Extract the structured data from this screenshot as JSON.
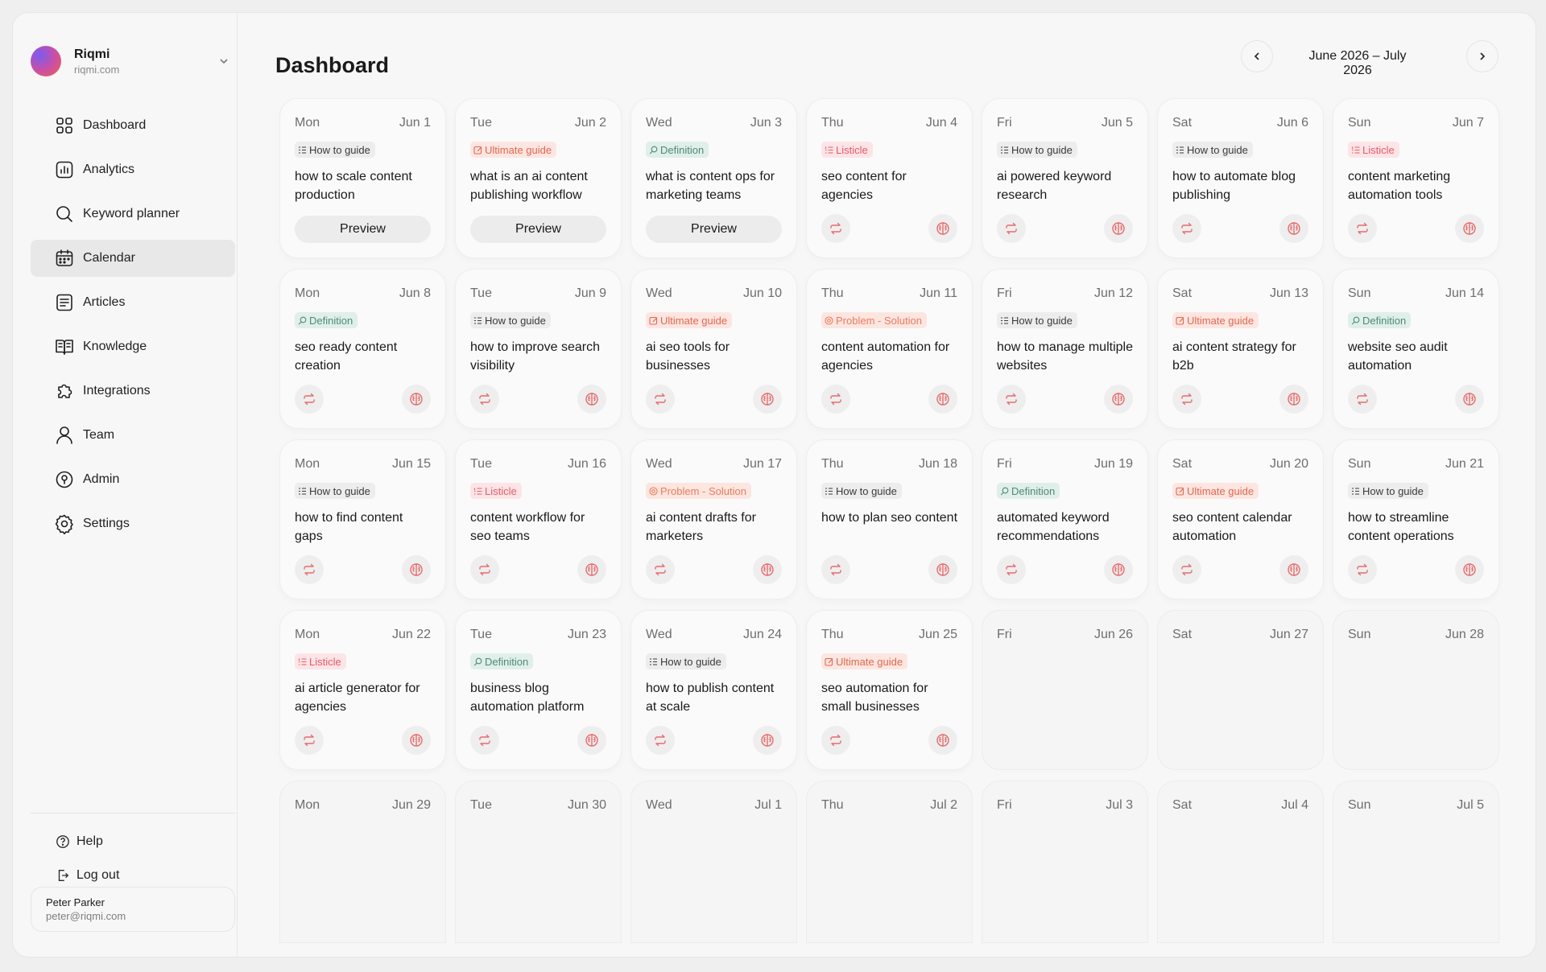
{
  "workspace": {
    "name": "Riqmi",
    "domain": "riqmi.com"
  },
  "nav": [
    {
      "label": "Dashboard",
      "icon": "grid-icon"
    },
    {
      "label": "Analytics",
      "icon": "bar-chart-icon"
    },
    {
      "label": "Keyword planner",
      "icon": "search-icon"
    },
    {
      "label": "Calendar",
      "icon": "calendar-icon",
      "active": true
    },
    {
      "label": "Articles",
      "icon": "article-icon"
    },
    {
      "label": "Knowledge",
      "icon": "book-icon"
    },
    {
      "label": "Integrations",
      "icon": "puzzle-icon"
    },
    {
      "label": "Team",
      "icon": "user-icon"
    },
    {
      "label": "Admin",
      "icon": "pin-icon"
    },
    {
      "label": "Settings",
      "icon": "gear-icon"
    }
  ],
  "footer": {
    "help": "Help",
    "logout": "Log out"
  },
  "user": {
    "name": "Peter Parker",
    "email": "peter@riqmi.com"
  },
  "header": {
    "title": "Dashboard",
    "range": "June 2026 – July 2026"
  },
  "colors": {
    "accent": "#e05a5a",
    "howto": "#3a3a3a",
    "ultimate": "#e0684f",
    "definition": "#4e8a77",
    "listicle": "#e45b6b",
    "problem": "#e87c5f"
  },
  "days": [
    {
      "dow": "Mon",
      "date": "Jun 1",
      "tag": "How to guide",
      "type": "howto",
      "title": "how to scale content production",
      "action": "preview",
      "preview": "Preview"
    },
    {
      "dow": "Tue",
      "date": "Jun 2",
      "tag": "Ultimate guide",
      "type": "ultimate",
      "title": "what is an ai content publishing workflow",
      "action": "preview",
      "preview": "Preview"
    },
    {
      "dow": "Wed",
      "date": "Jun 3",
      "tag": "Definition",
      "type": "definition",
      "title": "what is content ops for marketing teams",
      "action": "preview",
      "preview": "Preview"
    },
    {
      "dow": "Thu",
      "date": "Jun 4",
      "tag": "Listicle",
      "type": "listicle",
      "title": "seo content for agencies",
      "action": "icons"
    },
    {
      "dow": "Fri",
      "date": "Jun 5",
      "tag": "How to guide",
      "type": "howto",
      "title": "ai powered keyword research",
      "action": "icons"
    },
    {
      "dow": "Sat",
      "date": "Jun 6",
      "tag": "How to guide",
      "type": "howto",
      "title": "how to automate blog publishing",
      "action": "icons"
    },
    {
      "dow": "Sun",
      "date": "Jun 7",
      "tag": "Listicle",
      "type": "listicle",
      "title": "content marketing automation tools",
      "action": "icons"
    },
    {
      "dow": "Mon",
      "date": "Jun 8",
      "tag": "Definition",
      "type": "definition",
      "title": "seo ready content creation",
      "action": "icons"
    },
    {
      "dow": "Tue",
      "date": "Jun 9",
      "tag": "How to guide",
      "type": "howto",
      "title": "how to improve search visibility",
      "action": "icons"
    },
    {
      "dow": "Wed",
      "date": "Jun 10",
      "tag": "Ultimate guide",
      "type": "ultimate",
      "title": "ai seo tools for businesses",
      "action": "icons"
    },
    {
      "dow": "Thu",
      "date": "Jun 11",
      "tag": "Problem - Solution",
      "type": "problem",
      "title": "content automation for agencies",
      "action": "icons"
    },
    {
      "dow": "Fri",
      "date": "Jun 12",
      "tag": "How to guide",
      "type": "howto",
      "title": "how to manage multiple websites",
      "action": "icons"
    },
    {
      "dow": "Sat",
      "date": "Jun 13",
      "tag": "Ultimate guide",
      "type": "ultimate",
      "title": "ai content strategy for b2b",
      "action": "icons"
    },
    {
      "dow": "Sun",
      "date": "Jun 14",
      "tag": "Definition",
      "type": "definition",
      "title": "website seo audit automation",
      "action": "icons"
    },
    {
      "dow": "Mon",
      "date": "Jun 15",
      "tag": "How to guide",
      "type": "howto",
      "title": "how to find content gaps",
      "action": "icons"
    },
    {
      "dow": "Tue",
      "date": "Jun 16",
      "tag": "Listicle",
      "type": "listicle",
      "title": "content workflow for seo teams",
      "action": "icons"
    },
    {
      "dow": "Wed",
      "date": "Jun 17",
      "tag": "Problem - Solution",
      "type": "problem",
      "title": "ai content drafts for marketers",
      "action": "icons"
    },
    {
      "dow": "Thu",
      "date": "Jun 18",
      "tag": "How to guide",
      "type": "howto",
      "title": "how to plan seo content",
      "action": "icons"
    },
    {
      "dow": "Fri",
      "date": "Jun 19",
      "tag": "Definition",
      "type": "definition",
      "title": "automated keyword recommendations",
      "action": "icons"
    },
    {
      "dow": "Sat",
      "date": "Jun 20",
      "tag": "Ultimate guide",
      "type": "ultimate",
      "title": "seo content calendar automation",
      "action": "icons"
    },
    {
      "dow": "Sun",
      "date": "Jun 21",
      "tag": "How to guide",
      "type": "howto",
      "title": "how to streamline content operations",
      "action": "icons"
    },
    {
      "dow": "Mon",
      "date": "Jun 22",
      "tag": "Listicle",
      "type": "listicle",
      "title": "ai article generator for agencies",
      "action": "icons"
    },
    {
      "dow": "Tue",
      "date": "Jun 23",
      "tag": "Definition",
      "type": "definition",
      "title": "business blog automation platform",
      "action": "icons"
    },
    {
      "dow": "Wed",
      "date": "Jun 24",
      "tag": "How to guide",
      "type": "howto",
      "title": "how to publish content at scale",
      "action": "icons"
    },
    {
      "dow": "Thu",
      "date": "Jun 25",
      "tag": "Ultimate guide",
      "type": "ultimate",
      "title": "seo automation for small businesses",
      "action": "icons"
    },
    {
      "dow": "Fri",
      "date": "Jun 26"
    },
    {
      "dow": "Sat",
      "date": "Jun 27"
    },
    {
      "dow": "Sun",
      "date": "Jun 28"
    },
    {
      "dow": "Mon",
      "date": "Jun 29"
    },
    {
      "dow": "Tue",
      "date": "Jun 30"
    },
    {
      "dow": "Wed",
      "date": "Jul 1"
    },
    {
      "dow": "Thu",
      "date": "Jul 2"
    },
    {
      "dow": "Fri",
      "date": "Jul 3"
    },
    {
      "dow": "Sat",
      "date": "Jul 4"
    },
    {
      "dow": "Sun",
      "date": "Jul 5"
    }
  ]
}
